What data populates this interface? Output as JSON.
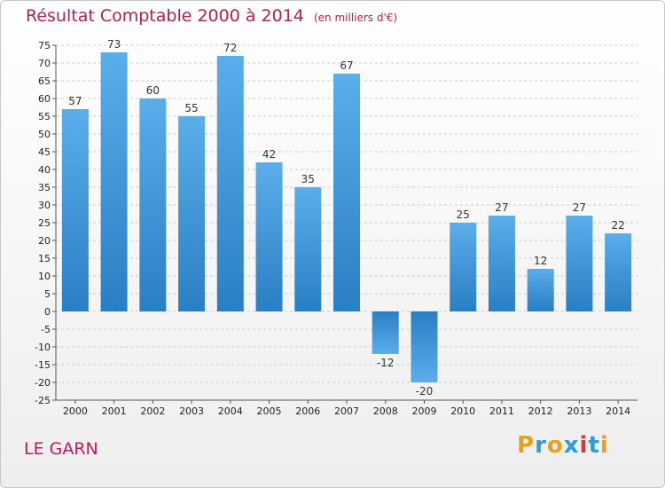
{
  "header": {
    "title": "Résultat Comptable 2000 à 2014",
    "subtitle": "(en milliers d'€)"
  },
  "footer": {
    "place": "LE GARN",
    "logo_letters": [
      "P",
      "r",
      "o",
      "x",
      "i",
      "t",
      "i"
    ]
  },
  "colors": {
    "bar_top": "#5aaeea",
    "bar_bottom": "#2a7ec4",
    "neg_top": "#2a7ec4",
    "neg_bottom": "#5aaeea",
    "grid": "#cccccc",
    "logo": [
      "#e8a020",
      "#2f9ad8",
      "#e8a020",
      "#2f9ad8",
      "#d23a3a",
      "#2f9ad8",
      "#e8a020"
    ]
  },
  "chart_data": {
    "type": "bar",
    "title": "Résultat Comptable 2000 à 2014",
    "subtitle": "(en milliers d'€)",
    "xlabel": "",
    "ylabel": "",
    "categories": [
      "2000",
      "2001",
      "2002",
      "2003",
      "2004",
      "2005",
      "2006",
      "2007",
      "2008",
      "2009",
      "2010",
      "2011",
      "2012",
      "2013",
      "2014"
    ],
    "values": [
      57,
      73,
      60,
      55,
      72,
      42,
      35,
      67,
      -12,
      -20,
      25,
      27,
      12,
      27,
      22
    ],
    "data_labels": [
      "57",
      "73",
      "60",
      "55",
      "72",
      "42",
      "35",
      "67",
      "-12",
      "-20",
      "25",
      "27",
      "12",
      "27",
      "22"
    ],
    "ylim": [
      -25,
      75
    ],
    "yticks": [
      "-25",
      "-20",
      "-15",
      "-10",
      "-5",
      "0",
      "5",
      "10",
      "15",
      "20",
      "25",
      "30",
      "35",
      "40",
      "45",
      "50",
      "55",
      "60",
      "65",
      "70",
      "75"
    ],
    "grid": true
  }
}
